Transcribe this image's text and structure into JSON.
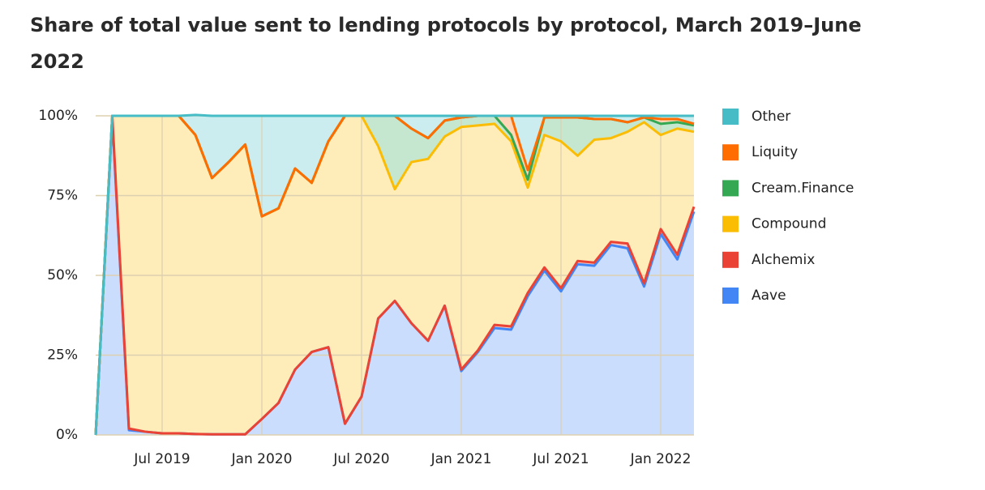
{
  "chart_data": {
    "type": "stacked-area",
    "title": "Share of total value sent to lending protocols by protocol, March 2019–June 2022",
    "x": [
      "2019-03",
      "2019-04",
      "2019-05",
      "2019-06",
      "2019-07",
      "2019-08",
      "2019-09",
      "2019-10",
      "2019-11",
      "2019-12",
      "2020-01",
      "2020-02",
      "2020-03",
      "2020-04",
      "2020-05",
      "2020-06",
      "2020-07",
      "2020-08",
      "2020-09",
      "2020-10",
      "2020-11",
      "2020-12",
      "2021-01",
      "2021-02",
      "2021-03",
      "2021-04",
      "2021-05",
      "2021-06",
      "2021-07",
      "2021-08",
      "2021-09",
      "2021-10",
      "2021-11",
      "2021-12",
      "2022-01",
      "2022-02",
      "2022-03"
    ],
    "series": [
      {
        "name": "Aave",
        "color": "#4285f4",
        "values": [
          0,
          99,
          1.5,
          1,
          0.5,
          0.5,
          0.3,
          0.2,
          0.2,
          0.2,
          5,
          10,
          20.5,
          26,
          27.5,
          3.5,
          12,
          36.5,
          42,
          35,
          29.5,
          40.5,
          20,
          26,
          33.5,
          33,
          43.5,
          51.5,
          45,
          53.5,
          53,
          59.5,
          58.5,
          46.5,
          63,
          55,
          70
        ]
      },
      {
        "name": "Alchemix",
        "color": "#ea4335",
        "values": [
          0,
          1,
          0.5,
          0,
          0,
          0,
          0,
          0,
          0,
          0,
          0,
          0,
          0,
          0,
          0,
          0,
          0,
          0,
          0,
          0,
          0,
          0,
          0.5,
          0.5,
          1,
          1,
          1,
          1,
          1,
          1,
          1,
          1,
          1.5,
          1,
          1.5,
          1.5,
          1.5
        ]
      },
      {
        "name": "Compound",
        "color": "#fbbc04",
        "values": [
          0,
          0,
          98,
          99,
          99.5,
          99.5,
          93.7,
          80.3,
          85.3,
          90.8,
          63.5,
          61,
          63,
          53,
          64.5,
          96.5,
          88,
          54,
          35,
          50.5,
          57,
          53,
          76,
          70.5,
          63,
          58,
          33,
          41.5,
          46,
          33,
          38.5,
          32.5,
          35,
          50.5,
          29.5,
          39.5,
          23.5
        ]
      },
      {
        "name": "Cream.Finance",
        "color": "#34a853",
        "values": [
          0,
          0,
          0,
          0,
          0,
          0,
          0,
          0,
          0,
          0,
          0,
          0,
          0,
          0,
          0,
          0,
          0,
          9.5,
          23,
          10.5,
          6.5,
          5,
          3,
          3,
          2.5,
          2,
          2.5,
          5.5,
          7.5,
          12,
          6.5,
          6,
          3,
          1.5,
          3.5,
          2,
          2
        ]
      },
      {
        "name": "Liquity",
        "color": "#ff6d01",
        "values": [
          0,
          0,
          0,
          0,
          0,
          0,
          0,
          0,
          0,
          0,
          0,
          0,
          0,
          0,
          0,
          0,
          0,
          0,
          0,
          0,
          0,
          0,
          0,
          0,
          0,
          6,
          3,
          0,
          0,
          0,
          0,
          0,
          0,
          0,
          1.5,
          1,
          0.5
        ]
      },
      {
        "name": "Other",
        "color": "#46bdc6",
        "values": [
          0,
          0,
          0,
          0,
          0,
          0,
          6.3,
          19.5,
          14.5,
          9,
          31.5,
          29,
          16.5,
          21,
          8,
          0,
          0,
          0,
          0,
          4,
          7,
          1.5,
          0.5,
          0,
          0,
          0,
          17,
          0.5,
          0.5,
          0.5,
          1,
          1,
          2,
          0.5,
          1,
          1,
          2.5
        ]
      }
    ],
    "ylim": [
      0,
      100
    ],
    "yticks": [
      {
        "value": 0,
        "label": "0%"
      },
      {
        "value": 25,
        "label": "25%"
      },
      {
        "value": 50,
        "label": "50%"
      },
      {
        "value": 75,
        "label": "75%"
      },
      {
        "value": 100,
        "label": "100%"
      }
    ],
    "xticks": [
      {
        "value": "2019-07",
        "label": "Jul 2019"
      },
      {
        "value": "2020-01",
        "label": "Jan 2020"
      },
      {
        "value": "2020-07",
        "label": "Jul 2020"
      },
      {
        "value": "2021-01",
        "label": "Jan 2021"
      },
      {
        "value": "2021-07",
        "label": "Jul 2021"
      },
      {
        "value": "2022-01",
        "label": "Jan 2022"
      }
    ],
    "grid": true,
    "legend": "right"
  }
}
